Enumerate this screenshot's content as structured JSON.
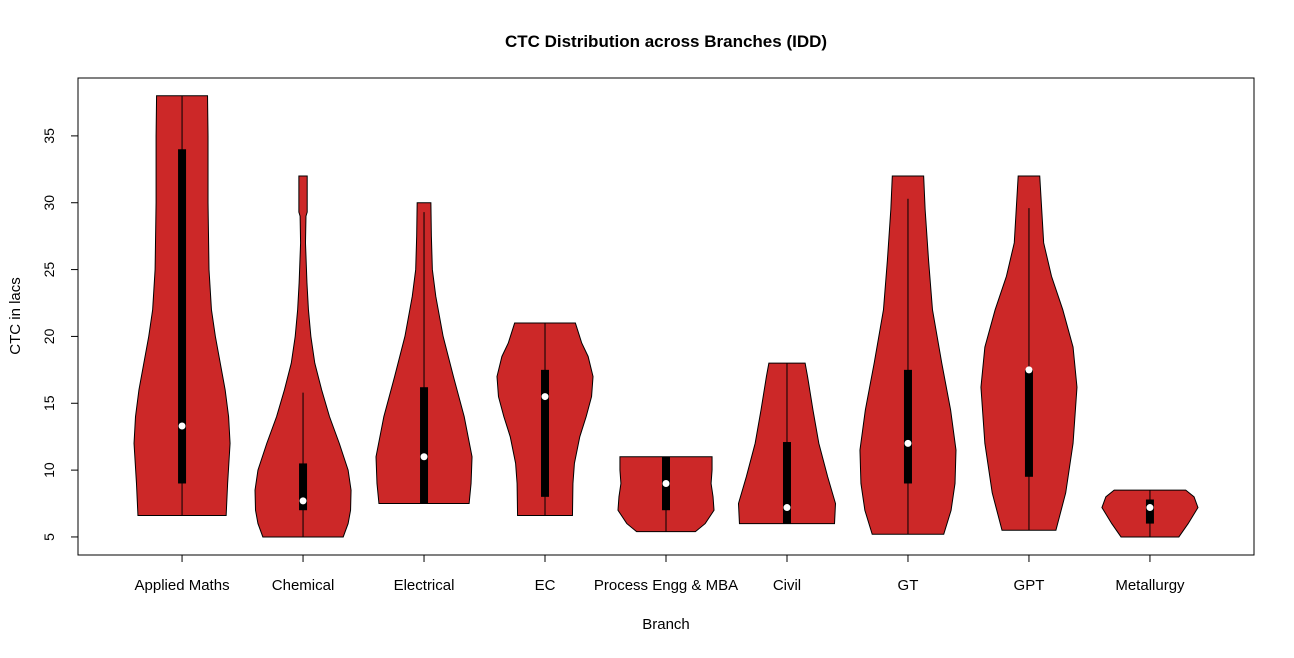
{
  "chart_data": {
    "type": "violin",
    "title": "CTC Distribution across Branches (IDD)",
    "xlabel": "Branch",
    "ylabel": "CTC in lacs",
    "ylim": [
      3.65,
      39.33
    ],
    "yticks": [
      5,
      10,
      15,
      20,
      25,
      30,
      35
    ],
    "grid": false,
    "legend": "none",
    "colors": {
      "violin_fill": "#CC2828",
      "box": "#000000",
      "median_dot": "#FFFFFF"
    },
    "categories": [
      "Applied Maths",
      "Chemical",
      "Electrical",
      "EC",
      "Process Engg & MBA",
      "Civil",
      "GT",
      "GPT",
      "Metallurgy"
    ],
    "series": [
      {
        "category": "Applied Maths",
        "min": 6.6,
        "q1": 9,
        "median": 13.3,
        "q3": 34,
        "max": 38,
        "whisker_low": 6.6,
        "whisker_high": 38,
        "density": [
          [
            6.6,
            0.9
          ],
          [
            9,
            0.93
          ],
          [
            12,
            0.98
          ],
          [
            14,
            0.95
          ],
          [
            16,
            0.88
          ],
          [
            18,
            0.78
          ],
          [
            20,
            0.68
          ],
          [
            22,
            0.6
          ],
          [
            25,
            0.55
          ],
          [
            30,
            0.53
          ],
          [
            35,
            0.53
          ],
          [
            38,
            0.52
          ]
        ]
      },
      {
        "category": "Chemical",
        "min": 5,
        "q1": 7,
        "median": 7.7,
        "q3": 10.5,
        "max": 32,
        "whisker_low": 5,
        "whisker_high": 15.8,
        "density": [
          [
            5,
            0.82
          ],
          [
            6,
            0.92
          ],
          [
            7,
            0.97
          ],
          [
            8.5,
            0.98
          ],
          [
            10,
            0.92
          ],
          [
            12,
            0.74
          ],
          [
            14,
            0.54
          ],
          [
            16,
            0.38
          ],
          [
            18,
            0.24
          ],
          [
            20,
            0.16
          ],
          [
            22,
            0.11
          ],
          [
            24,
            0.08
          ],
          [
            27,
            0.05
          ],
          [
            29,
            0.06
          ],
          [
            29.3,
            0.085
          ],
          [
            32,
            0.085
          ]
        ]
      },
      {
        "category": "Electrical",
        "min": 7.5,
        "q1": 7.5,
        "median": 11,
        "q3": 16.2,
        "max": 30,
        "whisker_low": 7.5,
        "whisker_high": 29.3,
        "density": [
          [
            7.5,
            0.92
          ],
          [
            9,
            0.96
          ],
          [
            11,
            0.98
          ],
          [
            14,
            0.82
          ],
          [
            17,
            0.6
          ],
          [
            20,
            0.39
          ],
          [
            23,
            0.24
          ],
          [
            25,
            0.17
          ],
          [
            27.5,
            0.15
          ],
          [
            30,
            0.14
          ]
        ]
      },
      {
        "category": "EC",
        "min": 6.6,
        "q1": 8,
        "median": 15.5,
        "q3": 17.5,
        "max": 21,
        "whisker_low": 6.6,
        "whisker_high": 21,
        "density": [
          [
            6.6,
            0.56
          ],
          [
            9,
            0.57
          ],
          [
            10.5,
            0.6
          ],
          [
            12.5,
            0.71
          ],
          [
            14,
            0.84
          ],
          [
            15.5,
            0.95
          ],
          [
            17,
            0.98
          ],
          [
            18.5,
            0.88
          ],
          [
            19.5,
            0.75
          ],
          [
            21,
            0.62
          ]
        ]
      },
      {
        "category": "Process Engg & MBA",
        "min": 5.4,
        "q1": 7,
        "median": 9,
        "q3": 11,
        "max": 11,
        "whisker_low": 5.4,
        "whisker_high": 11,
        "density": [
          [
            5.4,
            0.6
          ],
          [
            6,
            0.8
          ],
          [
            7,
            0.98
          ],
          [
            8,
            0.96
          ],
          [
            9,
            0.92
          ],
          [
            10,
            0.94
          ],
          [
            11,
            0.94
          ]
        ]
      },
      {
        "category": "Civil",
        "min": 6,
        "q1": 6,
        "median": 7.2,
        "q3": 12.1,
        "max": 18,
        "whisker_low": 6,
        "whisker_high": 18,
        "density": [
          [
            6,
            0.97
          ],
          [
            7.5,
            0.99
          ],
          [
            9.5,
            0.83
          ],
          [
            12,
            0.65
          ],
          [
            14.5,
            0.53
          ],
          [
            17,
            0.42
          ],
          [
            18,
            0.37
          ]
        ]
      },
      {
        "category": "GT",
        "min": 5.2,
        "q1": 9,
        "median": 12,
        "q3": 17.5,
        "max": 32,
        "whisker_low": 5.2,
        "whisker_high": 30.3,
        "density": [
          [
            5.2,
            0.73
          ],
          [
            7,
            0.88
          ],
          [
            9,
            0.96
          ],
          [
            11.5,
            0.98
          ],
          [
            14.5,
            0.87
          ],
          [
            18,
            0.69
          ],
          [
            22,
            0.5
          ],
          [
            25.7,
            0.42
          ],
          [
            29.5,
            0.35
          ],
          [
            32,
            0.32
          ]
        ]
      },
      {
        "category": "GPT",
        "min": 5.5,
        "q1": 9.5,
        "median": 17.5,
        "q3": 17.5,
        "max": 32,
        "whisker_low": 5.5,
        "whisker_high": 29.6,
        "density": [
          [
            5.5,
            0.55
          ],
          [
            8.3,
            0.75
          ],
          [
            12,
            0.9
          ],
          [
            16.2,
            0.98
          ],
          [
            19.2,
            0.9
          ],
          [
            22,
            0.69
          ],
          [
            24.5,
            0.46
          ],
          [
            27,
            0.3
          ],
          [
            29.5,
            0.26
          ],
          [
            32,
            0.22
          ]
        ]
      },
      {
        "category": "Metallurgy",
        "min": 5,
        "q1": 6,
        "median": 7.2,
        "q3": 7.8,
        "max": 8.5,
        "whisker_low": 5,
        "whisker_high": 8.5,
        "density": [
          [
            5,
            0.59
          ],
          [
            6,
            0.78
          ],
          [
            7.2,
            0.98
          ],
          [
            8,
            0.9
          ],
          [
            8.5,
            0.73
          ]
        ]
      }
    ]
  }
}
